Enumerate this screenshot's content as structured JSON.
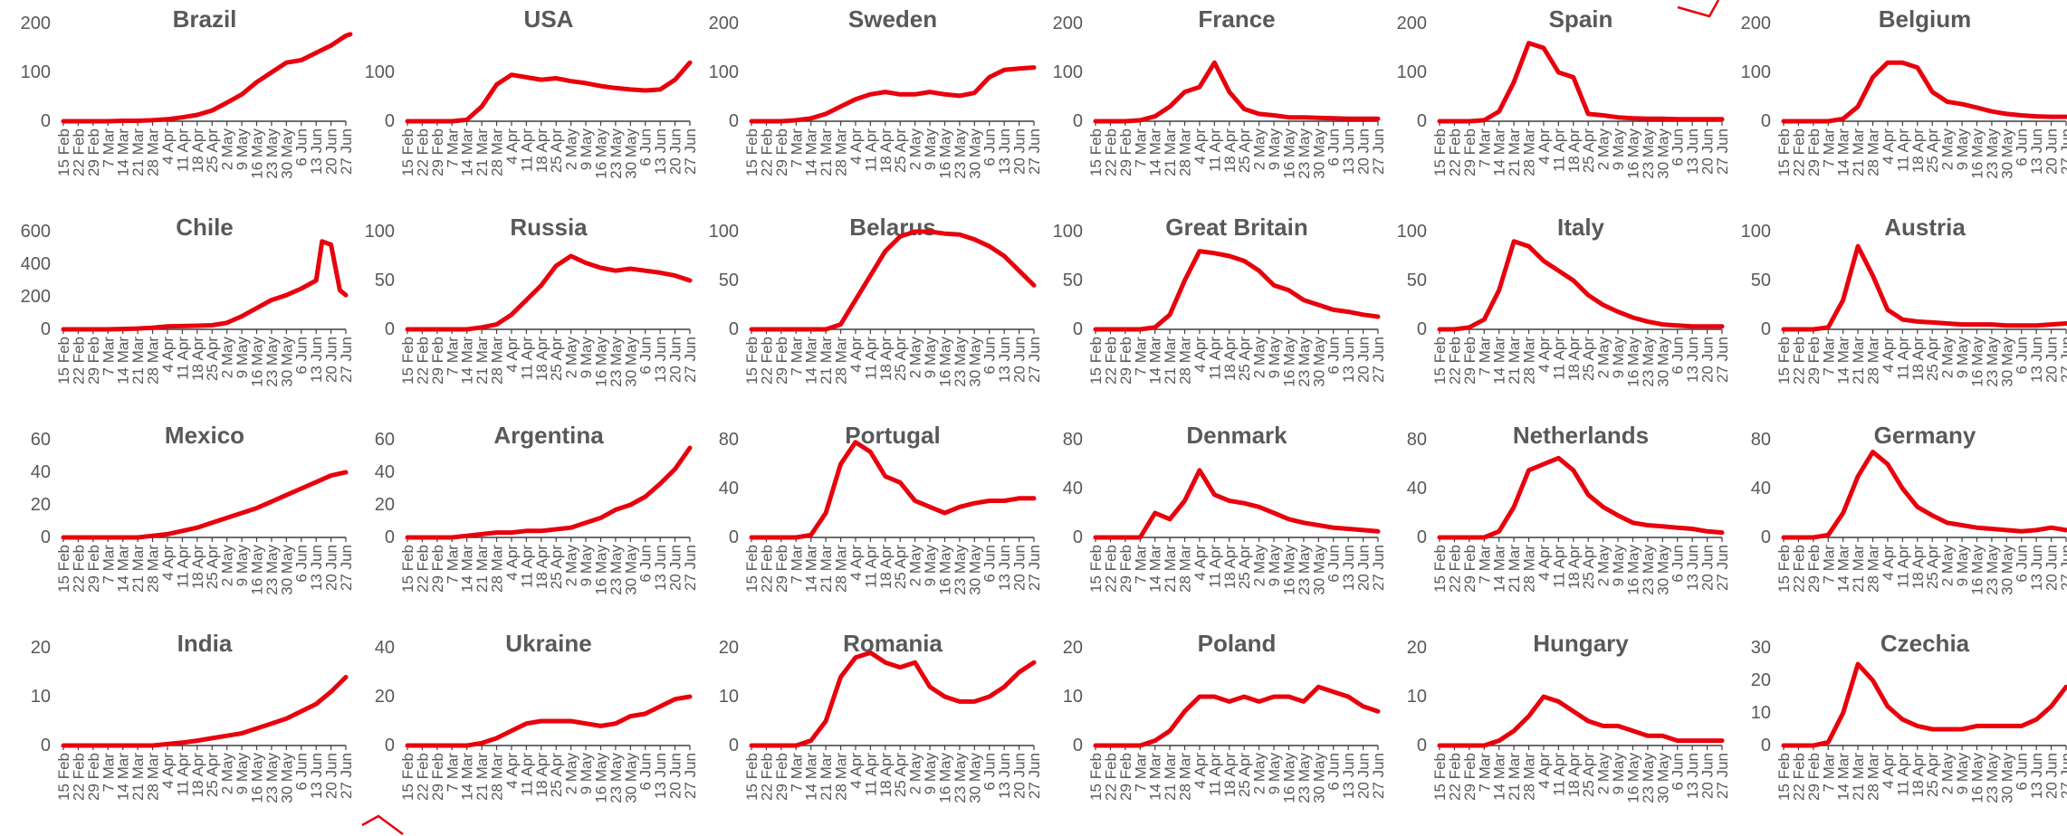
{
  "x_tick_labels": [
    "15 Feb",
    "22 Feb",
    "29 Feb",
    "7 Mar",
    "14 Mar",
    "21 Mar",
    "28 Mar",
    "4 Apr",
    "11 Apr",
    "18 Apr",
    "25 Apr",
    "2 May",
    "9 May",
    "16 May",
    "23 May",
    "30 May",
    "6 Jun",
    "13 Jun",
    "20 Jun",
    "27 Jun"
  ],
  "colors": {
    "series": "#e8000d",
    "text": "#595959",
    "axis": "#3f3f3f"
  },
  "chart_data": [
    {
      "type": "line",
      "title": "Brazil",
      "ylim": [
        0,
        200
      ],
      "yticks": [
        0,
        100,
        200
      ],
      "x": [
        0,
        1,
        2,
        3,
        4,
        5,
        6,
        7,
        8,
        9,
        10,
        11,
        12,
        13,
        14,
        15,
        16,
        17,
        18,
        19,
        19.3
      ],
      "values": [
        0,
        0,
        0,
        0,
        1,
        1,
        2,
        4,
        8,
        13,
        22,
        38,
        55,
        80,
        100,
        120,
        125,
        140,
        155,
        175,
        178
      ]
    },
    {
      "type": "line",
      "title": "USA",
      "ylim": [
        0,
        200
      ],
      "yticks": [
        0,
        100
      ],
      "x": [
        0,
        1,
        2,
        3,
        4,
        5,
        6,
        7,
        8,
        9,
        10,
        11,
        12,
        13,
        14,
        15,
        16,
        17,
        18,
        19
      ],
      "values": [
        0,
        0,
        0,
        0,
        3,
        30,
        75,
        95,
        90,
        85,
        88,
        82,
        78,
        72,
        68,
        65,
        63,
        65,
        85,
        120
      ]
    },
    {
      "type": "line",
      "title": "Sweden",
      "ylim": [
        0,
        200
      ],
      "yticks": [
        0,
        100,
        200
      ],
      "x": [
        0,
        1,
        2,
        3,
        4,
        5,
        6,
        7,
        8,
        9,
        10,
        11,
        12,
        13,
        14,
        15,
        16,
        17,
        18,
        19
      ],
      "values": [
        0,
        0,
        0,
        2,
        6,
        15,
        30,
        45,
        55,
        60,
        55,
        55,
        60,
        55,
        52,
        58,
        90,
        105,
        108,
        110
      ]
    },
    {
      "type": "line",
      "title": "France",
      "ylim": [
        0,
        200
      ],
      "yticks": [
        0,
        100,
        200
      ],
      "x": [
        0,
        1,
        2,
        3,
        4,
        5,
        6,
        7,
        8,
        9,
        10,
        11,
        12,
        13,
        14,
        15,
        16,
        17,
        18,
        19
      ],
      "values": [
        0,
        0,
        0,
        2,
        10,
        30,
        60,
        70,
        120,
        60,
        25,
        15,
        12,
        8,
        8,
        7,
        6,
        5,
        5,
        5
      ]
    },
    {
      "type": "line",
      "title": "Spain",
      "ylim": [
        0,
        200
      ],
      "yticks": [
        0,
        100,
        200
      ],
      "x": [
        0,
        1,
        2,
        3,
        4,
        5,
        6,
        7,
        8,
        9,
        10,
        11,
        12,
        13,
        14,
        15,
        16,
        17,
        18,
        19
      ],
      "values": [
        0,
        0,
        0,
        2,
        20,
        80,
        160,
        150,
        100,
        90,
        15,
        12,
        8,
        6,
        5,
        5,
        4,
        4,
        4,
        4
      ]
    },
    {
      "type": "line",
      "title": "Belgium",
      "ylim": [
        0,
        200
      ],
      "yticks": [
        0,
        100,
        200
      ],
      "x": [
        0,
        1,
        2,
        3,
        4,
        5,
        6,
        7,
        8,
        9,
        10,
        11,
        12,
        13,
        14,
        15,
        16,
        17,
        18,
        19
      ],
      "values": [
        0,
        0,
        0,
        0,
        5,
        30,
        90,
        120,
        120,
        110,
        60,
        40,
        35,
        28,
        20,
        15,
        12,
        10,
        9,
        9
      ]
    },
    {
      "type": "line",
      "title": "Chile",
      "ylim": [
        0,
        600
      ],
      "yticks": [
        0,
        200,
        400,
        600
      ],
      "x": [
        0,
        1,
        2,
        3,
        4,
        5,
        6,
        7,
        8,
        9,
        10,
        11,
        12,
        13,
        14,
        15,
        16,
        17,
        17.4,
        18,
        18.6,
        19
      ],
      "values": [
        0,
        0,
        0,
        0,
        2,
        5,
        10,
        18,
        20,
        22,
        25,
        40,
        80,
        130,
        180,
        210,
        250,
        300,
        540,
        520,
        240,
        210
      ]
    },
    {
      "type": "line",
      "title": "Russia",
      "ylim": [
        0,
        100
      ],
      "yticks": [
        0,
        50,
        100
      ],
      "x": [
        0,
        1,
        2,
        3,
        4,
        5,
        6,
        7,
        8,
        9,
        10,
        11,
        12,
        13,
        14,
        15,
        16,
        17,
        18,
        19
      ],
      "values": [
        0,
        0,
        0,
        0,
        0,
        2,
        5,
        15,
        30,
        45,
        65,
        75,
        68,
        63,
        60,
        62,
        60,
        58,
        55,
        50
      ]
    },
    {
      "type": "line",
      "title": "Belarus",
      "ylim": [
        0,
        100
      ],
      "yticks": [
        0,
        50,
        100
      ],
      "x": [
        0,
        1,
        2,
        3,
        4,
        5,
        6,
        7,
        8,
        9,
        10,
        11,
        12,
        13,
        14,
        15,
        16,
        17,
        18,
        19
      ],
      "values": [
        0,
        0,
        0,
        0,
        0,
        0,
        5,
        30,
        55,
        80,
        95,
        100,
        100,
        98,
        97,
        92,
        85,
        75,
        60,
        45
      ]
    },
    {
      "type": "line",
      "title": "Great Britain",
      "ylim": [
        0,
        100
      ],
      "yticks": [
        0,
        50,
        100
      ],
      "x": [
        0,
        1,
        2,
        3,
        4,
        5,
        6,
        7,
        8,
        9,
        10,
        11,
        12,
        13,
        14,
        15,
        16,
        17,
        18,
        19
      ],
      "values": [
        0,
        0,
        0,
        0,
        2,
        15,
        50,
        80,
        78,
        75,
        70,
        60,
        45,
        40,
        30,
        25,
        20,
        18,
        15,
        13
      ]
    },
    {
      "type": "line",
      "title": "Italy",
      "ylim": [
        0,
        100
      ],
      "yticks": [
        0,
        50,
        100
      ],
      "x": [
        0,
        1,
        2,
        3,
        4,
        5,
        6,
        7,
        8,
        9,
        10,
        11,
        12,
        13,
        14,
        15,
        16,
        17,
        18,
        19
      ],
      "values": [
        0,
        0,
        2,
        10,
        40,
        90,
        85,
        70,
        60,
        50,
        35,
        25,
        18,
        12,
        8,
        5,
        4,
        3,
        3,
        3
      ]
    },
    {
      "type": "line",
      "title": "Austria",
      "ylim": [
        0,
        100
      ],
      "yticks": [
        0,
        50,
        100
      ],
      "x": [
        0,
        1,
        2,
        3,
        4,
        5,
        6,
        7,
        8,
        9,
        10,
        11,
        12,
        13,
        14,
        15,
        16,
        17,
        18,
        19
      ],
      "values": [
        0,
        0,
        0,
        2,
        30,
        85,
        55,
        20,
        10,
        8,
        7,
        6,
        5,
        5,
        5,
        4,
        4,
        4,
        5,
        6
      ]
    },
    {
      "type": "line",
      "title": "Mexico",
      "ylim": [
        0,
        60
      ],
      "yticks": [
        0,
        20,
        40,
        60
      ],
      "x": [
        0,
        1,
        2,
        3,
        4,
        5,
        6,
        7,
        8,
        9,
        10,
        11,
        12,
        13,
        14,
        15,
        16,
        17,
        18,
        19
      ],
      "values": [
        0,
        0,
        0,
        0,
        0,
        0,
        1,
        2,
        4,
        6,
        9,
        12,
        15,
        18,
        22,
        26,
        30,
        34,
        38,
        40
      ]
    },
    {
      "type": "line",
      "title": "Argentina",
      "ylim": [
        0,
        60
      ],
      "yticks": [
        0,
        20,
        40,
        60
      ],
      "x": [
        0,
        1,
        2,
        3,
        4,
        5,
        6,
        7,
        8,
        9,
        10,
        11,
        12,
        13,
        14,
        15,
        16,
        17,
        18,
        19
      ],
      "values": [
        0,
        0,
        0,
        0,
        1,
        2,
        3,
        3,
        4,
        4,
        5,
        6,
        9,
        12,
        17,
        20,
        25,
        33,
        42,
        55
      ]
    },
    {
      "type": "line",
      "title": "Portugal",
      "ylim": [
        0,
        80
      ],
      "yticks": [
        0,
        40,
        80
      ],
      "x": [
        0,
        1,
        2,
        3,
        4,
        5,
        6,
        7,
        8,
        9,
        10,
        11,
        12,
        13,
        14,
        15,
        16,
        17,
        18,
        19
      ],
      "values": [
        0,
        0,
        0,
        0,
        2,
        20,
        60,
        78,
        70,
        50,
        45,
        30,
        25,
        20,
        25,
        28,
        30,
        30,
        32,
        32
      ]
    },
    {
      "type": "line",
      "title": "Denmark",
      "ylim": [
        0,
        80
      ],
      "yticks": [
        0,
        40,
        80
      ],
      "x": [
        0,
        1,
        2,
        3,
        4,
        5,
        6,
        7,
        8,
        9,
        10,
        11,
        12,
        13,
        14,
        15,
        16,
        17,
        18,
        19
      ],
      "values": [
        0,
        0,
        0,
        0,
        20,
        15,
        30,
        55,
        35,
        30,
        28,
        25,
        20,
        15,
        12,
        10,
        8,
        7,
        6,
        5
      ]
    },
    {
      "type": "line",
      "title": "Netherlands",
      "ylim": [
        0,
        80
      ],
      "yticks": [
        0,
        40,
        80
      ],
      "x": [
        0,
        1,
        2,
        3,
        4,
        5,
        6,
        7,
        8,
        9,
        10,
        11,
        12,
        13,
        14,
        15,
        16,
        17,
        18,
        19
      ],
      "values": [
        0,
        0,
        0,
        0,
        5,
        25,
        55,
        60,
        65,
        55,
        35,
        25,
        18,
        12,
        10,
        9,
        8,
        7,
        5,
        4
      ]
    },
    {
      "type": "line",
      "title": "Germany",
      "ylim": [
        0,
        80
      ],
      "yticks": [
        0,
        40,
        80
      ],
      "x": [
        0,
        1,
        2,
        3,
        4,
        5,
        6,
        7,
        8,
        9,
        10,
        11,
        12,
        13,
        14,
        15,
        16,
        17,
        18,
        19
      ],
      "values": [
        0,
        0,
        0,
        2,
        20,
        50,
        70,
        60,
        40,
        25,
        18,
        12,
        10,
        8,
        7,
        6,
        5,
        6,
        8,
        6
      ]
    },
    {
      "type": "line",
      "title": "India",
      "ylim": [
        0,
        20
      ],
      "yticks": [
        0,
        10,
        20
      ],
      "x": [
        0,
        1,
        2,
        3,
        4,
        5,
        6,
        7,
        8,
        9,
        10,
        11,
        12,
        13,
        14,
        15,
        16,
        17,
        18,
        19
      ],
      "values": [
        0,
        0,
        0,
        0,
        0,
        0,
        0,
        0.3,
        0.6,
        1,
        1.5,
        2,
        2.5,
        3.5,
        4.5,
        5.5,
        7,
        8.5,
        11,
        14
      ]
    },
    {
      "type": "line",
      "title": "Ukraine",
      "ylim": [
        0,
        40
      ],
      "yticks": [
        0,
        20,
        40
      ],
      "x": [
        0,
        1,
        2,
        3,
        4,
        5,
        6,
        7,
        8,
        9,
        10,
        11,
        12,
        13,
        14,
        15,
        16,
        17,
        18,
        19
      ],
      "values": [
        0,
        0,
        0,
        0,
        0,
        1,
        3,
        6,
        9,
        10,
        10,
        10,
        9,
        8,
        9,
        12,
        13,
        16,
        19,
        20
      ]
    },
    {
      "type": "line",
      "title": "Romania",
      "ylim": [
        0,
        20
      ],
      "yticks": [
        0,
        10,
        20
      ],
      "x": [
        0,
        1,
        2,
        3,
        4,
        5,
        6,
        7,
        8,
        9,
        10,
        11,
        12,
        13,
        14,
        15,
        16,
        17,
        18,
        19
      ],
      "values": [
        0,
        0,
        0,
        0,
        1,
        5,
        14,
        18,
        19,
        17,
        16,
        17,
        12,
        10,
        9,
        9,
        10,
        12,
        15,
        17
      ]
    },
    {
      "type": "line",
      "title": "Poland",
      "ylim": [
        0,
        20
      ],
      "yticks": [
        0,
        10,
        20
      ],
      "x": [
        0,
        1,
        2,
        3,
        4,
        5,
        6,
        7,
        8,
        9,
        10,
        11,
        12,
        13,
        14,
        15,
        16,
        17,
        18,
        19
      ],
      "values": [
        0,
        0,
        0,
        0,
        1,
        3,
        7,
        10,
        10,
        9,
        10,
        9,
        10,
        10,
        9,
        12,
        11,
        10,
        8,
        7
      ]
    },
    {
      "type": "line",
      "title": "Hungary",
      "ylim": [
        0,
        20
      ],
      "yticks": [
        0,
        10,
        20
      ],
      "x": [
        0,
        1,
        2,
        3,
        4,
        5,
        6,
        7,
        8,
        9,
        10,
        11,
        12,
        13,
        14,
        15,
        16,
        17,
        18,
        19
      ],
      "values": [
        0,
        0,
        0,
        0,
        1,
        3,
        6,
        10,
        9,
        7,
        5,
        4,
        4,
        3,
        2,
        2,
        1,
        1,
        1,
        1
      ]
    },
    {
      "type": "line",
      "title": "Czechia",
      "ylim": [
        0,
        30
      ],
      "yticks": [
        0,
        10,
        20,
        30
      ],
      "x": [
        0,
        1,
        2,
        3,
        4,
        5,
        6,
        7,
        8,
        9,
        10,
        11,
        12,
        13,
        14,
        15,
        16,
        17,
        18,
        19
      ],
      "values": [
        0,
        0,
        0,
        1,
        10,
        25,
        20,
        12,
        8,
        6,
        5,
        5,
        5,
        6,
        6,
        6,
        6,
        8,
        12,
        18
      ]
    }
  ]
}
